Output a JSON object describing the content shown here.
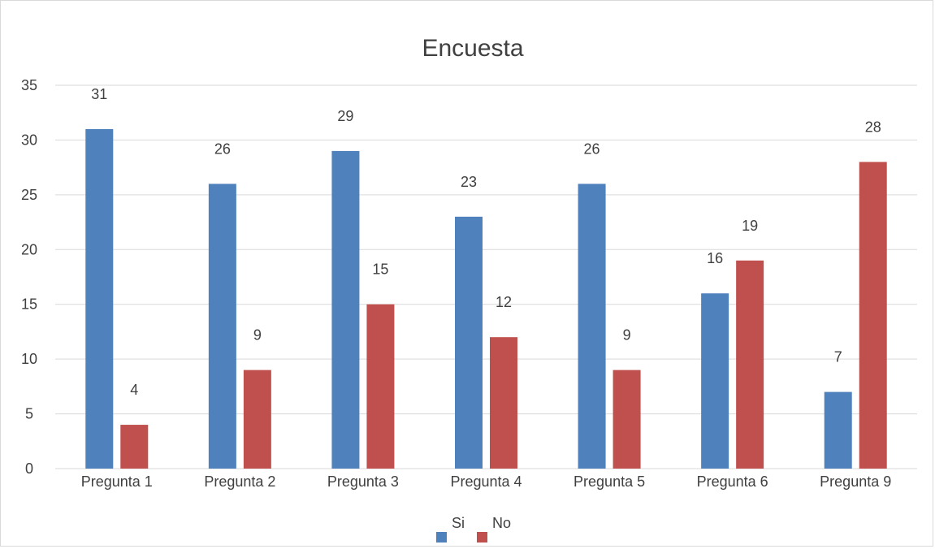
{
  "chart_data": {
    "type": "bar",
    "title": "Encuesta",
    "xlabel": "",
    "ylabel": "",
    "categories": [
      "Pregunta 1",
      "Pregunta 2",
      "Pregunta 3",
      "Pregunta 4",
      "Pregunta 5",
      "Pregunta 6",
      "Pregunta 9"
    ],
    "series": [
      {
        "name": "Si",
        "color": "#4f81bd",
        "values": [
          31,
          26,
          29,
          23,
          26,
          16,
          7
        ]
      },
      {
        "name": "No",
        "color": "#c0504d",
        "values": [
          4,
          9,
          15,
          12,
          9,
          19,
          28
        ]
      }
    ],
    "ylim": [
      0,
      35
    ],
    "yticks": [
      0,
      5,
      10,
      15,
      20,
      25,
      30,
      35
    ],
    "grid": true,
    "legend": "bottom-center",
    "data_labels": true
  }
}
